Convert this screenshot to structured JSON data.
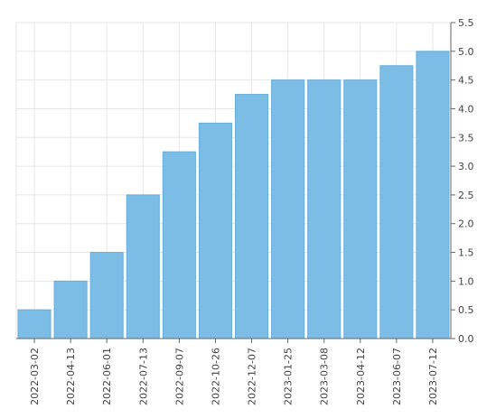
{
  "chart_data": {
    "type": "bar",
    "categories": [
      "2022-03-02",
      "2022-04-13",
      "2022-06-01",
      "2022-07-13",
      "2022-09-07",
      "2022-10-26",
      "2022-12-07",
      "2023-01-25",
      "2023-03-08",
      "2023-04-12",
      "2023-06-07",
      "2023-07-12"
    ],
    "values": [
      0.5,
      1.0,
      1.5,
      2.5,
      3.25,
      3.75,
      4.25,
      4.5,
      4.5,
      4.5,
      4.75,
      5.0
    ],
    "ylim": [
      0,
      5.5
    ],
    "yticks": [
      "0.0",
      "0.5",
      "1.0",
      "1.5",
      "2.0",
      "2.5",
      "3.0",
      "3.5",
      "4.0",
      "4.5",
      "5.0",
      "5.5"
    ],
    "title": "",
    "xlabel": "",
    "ylabel": "",
    "y_axis_side": "right",
    "grid": true,
    "legend": "none",
    "colors": {
      "bar": "#7cbde6",
      "bar_edge": "#6aaedb",
      "grid": "#e6e6e6",
      "axis": "#666666"
    }
  }
}
